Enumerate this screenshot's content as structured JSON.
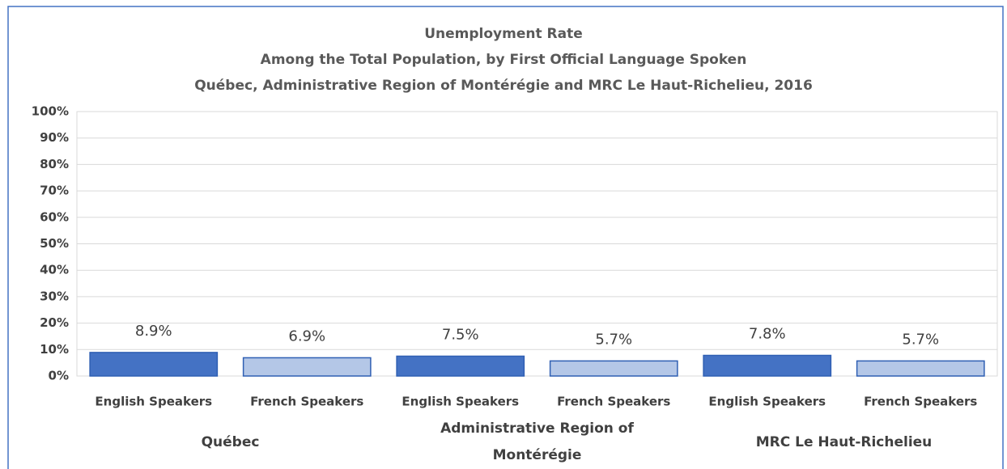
{
  "chart_data": {
    "type": "bar",
    "title": "Unemployment Rate",
    "subtitle": [
      "Among the Total Population, by First Official Language Spoken",
      "Québec, Administrative Region of Montérégie and MRC Le Haut-Richelieu, 2016"
    ],
    "categories": [
      "English Speakers",
      "French Speakers",
      "English Speakers",
      "French Speakers",
      "English Speakers",
      "French Speakers"
    ],
    "groups": [
      "Québec",
      "Administrative Region of Montérégie",
      "MRC Le Haut-Richelieu"
    ],
    "values": [
      8.9,
      6.9,
      7.5,
      5.7,
      7.8,
      5.7
    ],
    "value_labels": [
      "8.9%",
      "6.9%",
      "7.5%",
      "5.7%",
      "7.8%",
      "5.7%"
    ],
    "colors": [
      "#4472c4",
      "#b4c7e7",
      "#4472c4",
      "#b4c7e7",
      "#4472c4",
      "#b4c7e7"
    ],
    "ylim": [
      0,
      100
    ],
    "yticks": [
      {
        "value": 0,
        "label": "0%"
      },
      {
        "value": 10,
        "label": "10%"
      },
      {
        "value": 20,
        "label": "20%"
      },
      {
        "value": 30,
        "label": "30%"
      },
      {
        "value": 40,
        "label": "40%"
      },
      {
        "value": 50,
        "label": "50%"
      },
      {
        "value": 60,
        "label": "60%"
      },
      {
        "value": 70,
        "label": "70%"
      },
      {
        "value": 80,
        "label": "80%"
      },
      {
        "value": 90,
        "label": "90%"
      },
      {
        "value": 100,
        "label": "100%"
      }
    ],
    "grid": true
  }
}
